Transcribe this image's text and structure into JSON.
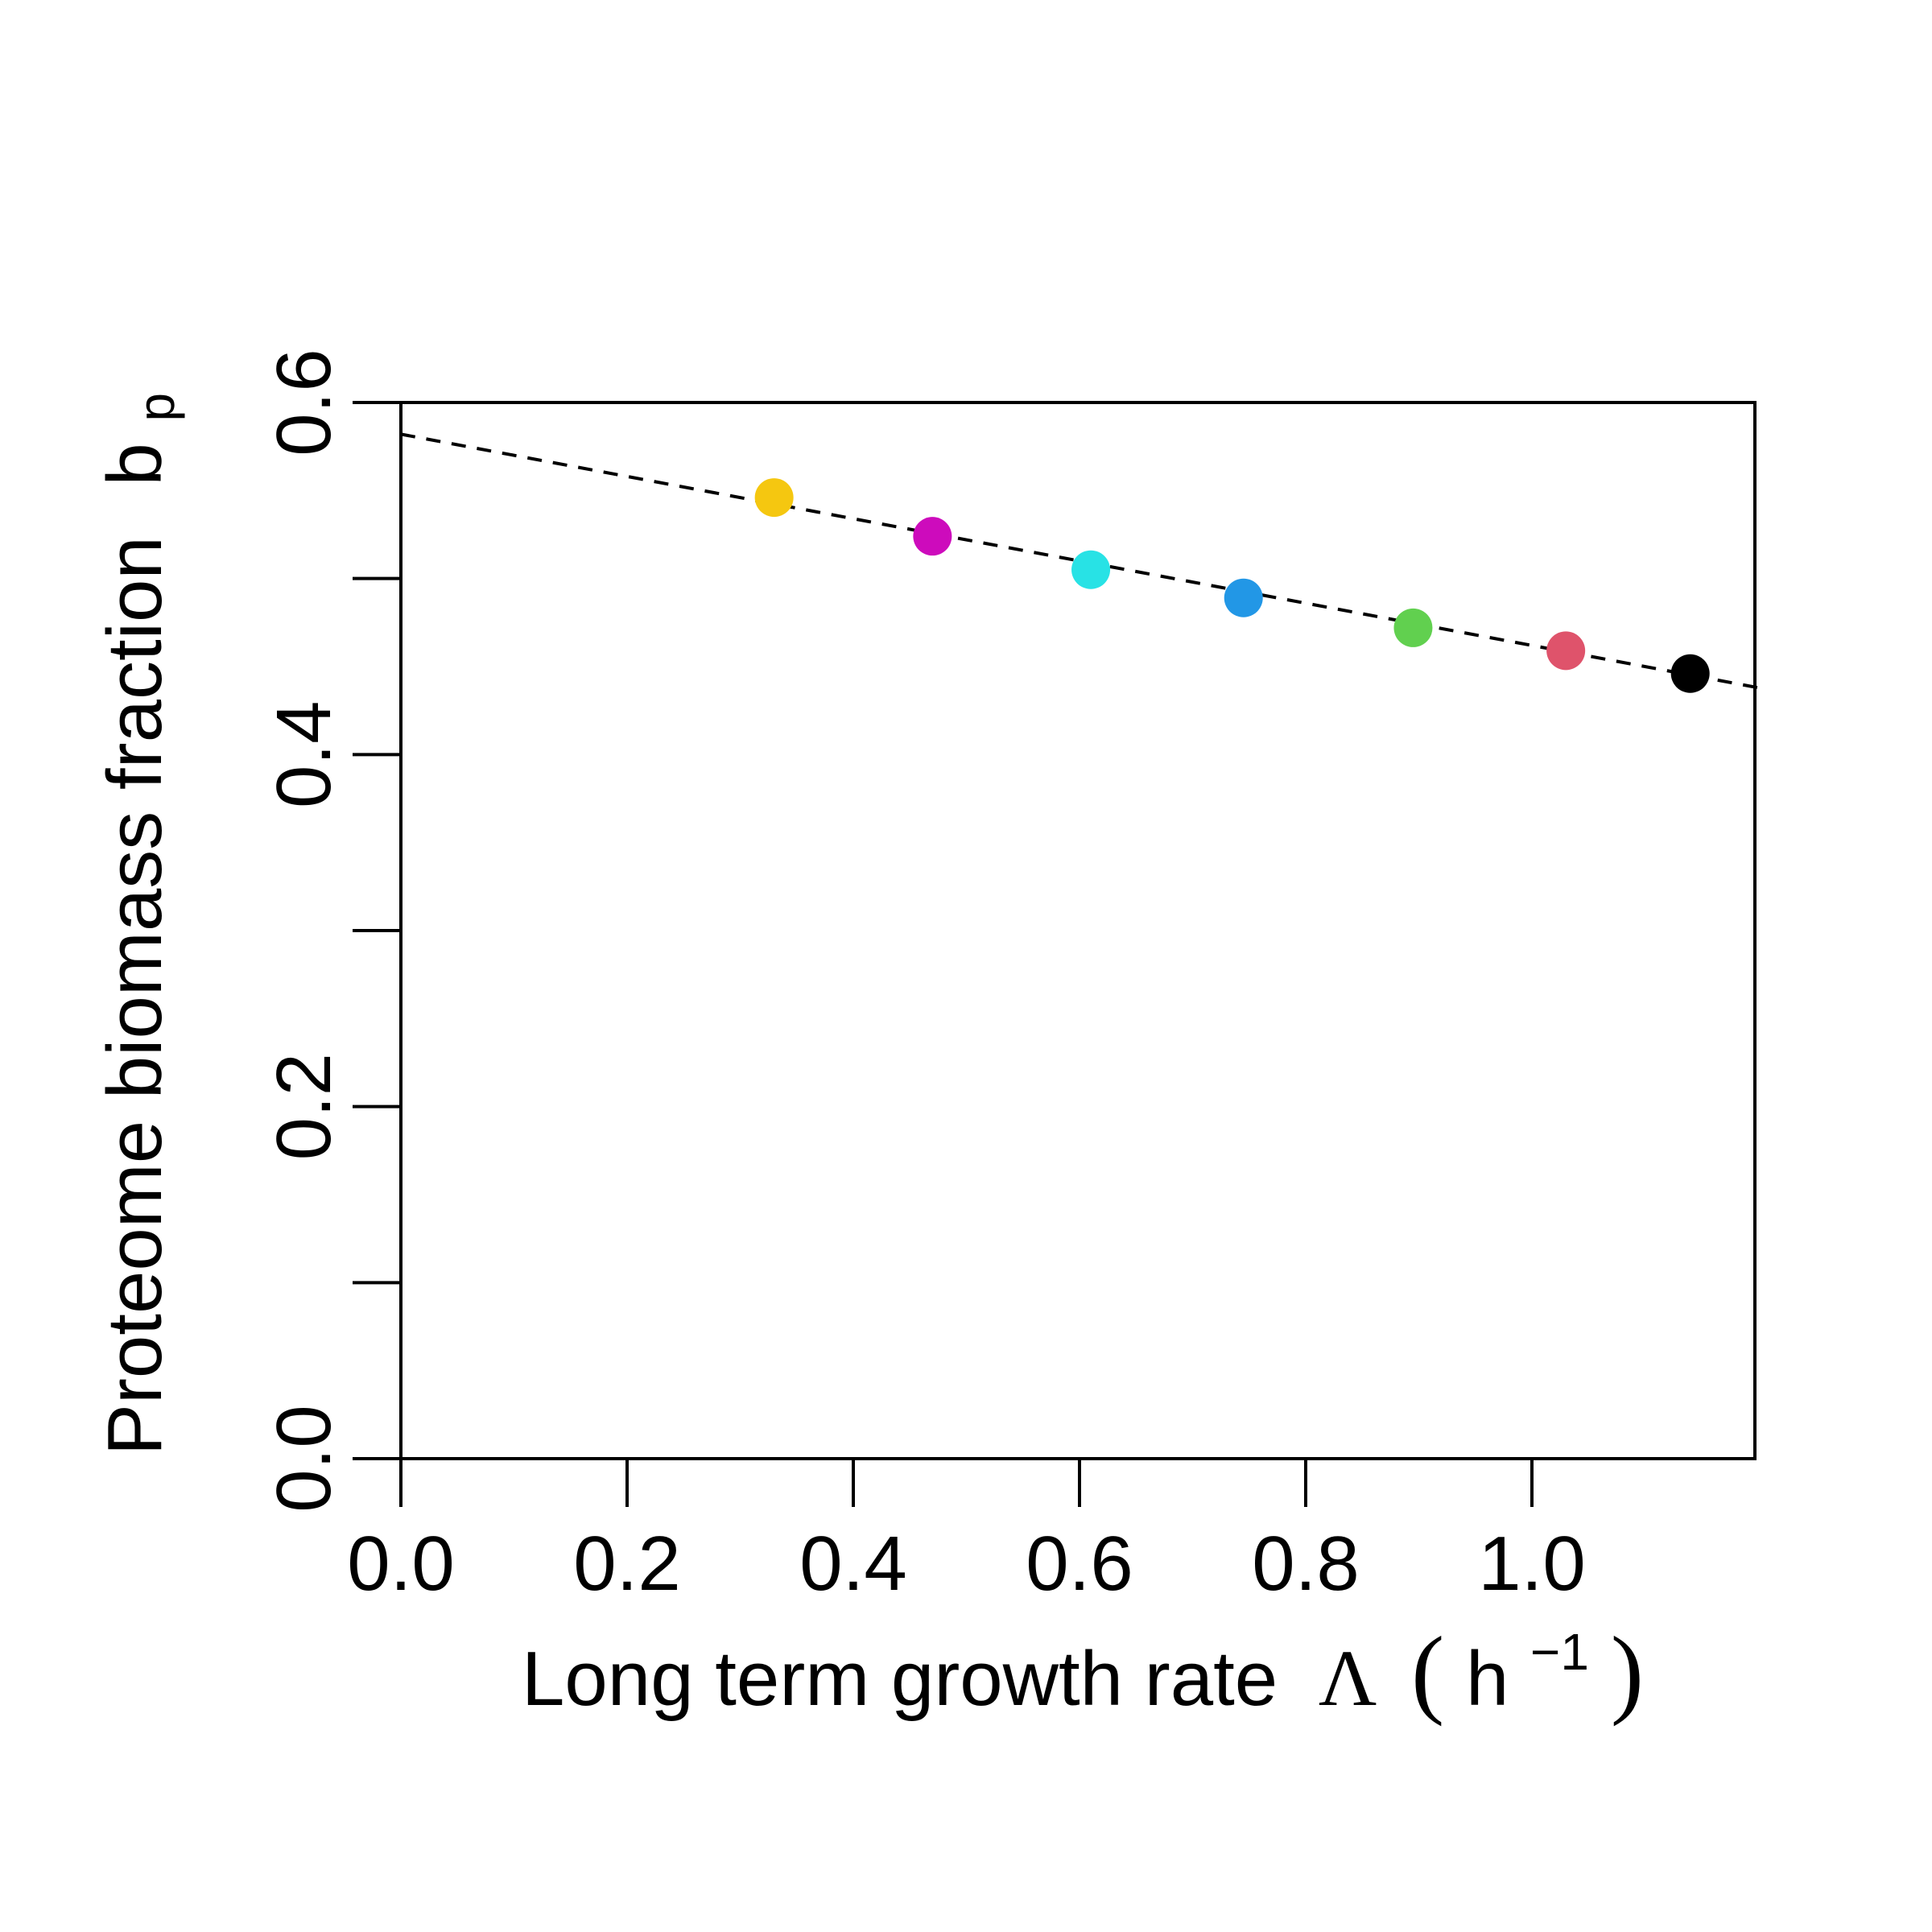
{
  "chart_data": {
    "type": "scatter",
    "title": "",
    "xlabel": {
      "text": "Long term growth rate",
      "symbol": "Λ",
      "open_paren": "(",
      "unit_base": "h",
      "unit_exp": "−1",
      "close_paren": ")"
    },
    "ylabel": {
      "text": "Proteome biomass fraction",
      "symbol_base": "b",
      "symbol_sub": "p"
    },
    "xlim": [
      0.0,
      1.2
    ],
    "ylim": [
      0.0,
      0.6
    ],
    "x_ticks": [
      0.0,
      0.2,
      0.4,
      0.6,
      0.8,
      1.0
    ],
    "x_tick_labels": [
      "0.0",
      "0.2",
      "0.4",
      "0.6",
      "0.8",
      "1.0"
    ],
    "y_ticks": [
      0.0,
      0.1,
      0.2,
      0.3,
      0.4,
      0.5,
      0.6
    ],
    "y_tick_labels": [
      "0.0",
      "0.2",
      "0.4",
      "0.6"
    ],
    "y_labeled_ticks": [
      0.0,
      0.2,
      0.4,
      0.6
    ],
    "grid": false,
    "points": [
      {
        "x": 0.33,
        "y": 0.546,
        "color": "#F5C710"
      },
      {
        "x": 0.47,
        "y": 0.524,
        "color": "#CD0BBC"
      },
      {
        "x": 0.61,
        "y": 0.505,
        "color": "#28E2E5"
      },
      {
        "x": 0.745,
        "y": 0.489,
        "color": "#2297E6"
      },
      {
        "x": 0.895,
        "y": 0.472,
        "color": "#61D04F"
      },
      {
        "x": 1.03,
        "y": 0.459,
        "color": "#DF536B"
      },
      {
        "x": 1.14,
        "y": 0.446,
        "color": "#000000"
      }
    ],
    "fit_line": {
      "style": "dashed",
      "color": "#000000",
      "x": [
        0.0,
        1.2
      ],
      "y": [
        0.582,
        0.438
      ]
    }
  }
}
